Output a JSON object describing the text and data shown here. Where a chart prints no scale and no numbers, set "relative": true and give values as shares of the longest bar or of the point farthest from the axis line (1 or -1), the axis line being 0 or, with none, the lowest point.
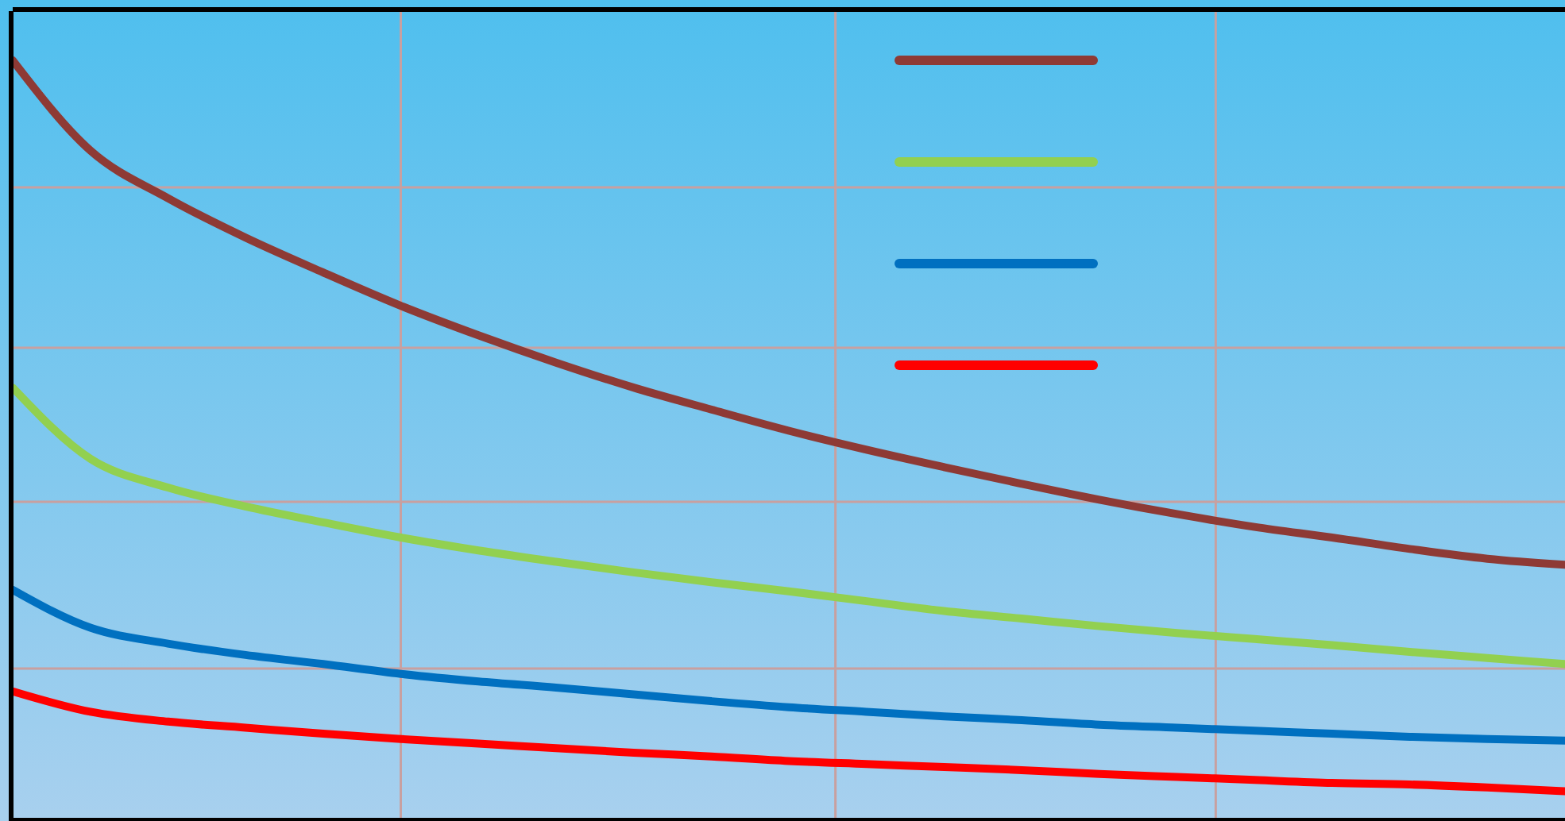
{
  "chart_data": {
    "type": "line",
    "relative": true,
    "grid": true,
    "marker": "none",
    "line_style": "solid",
    "categories": [
      null,
      null,
      null,
      null,
      null,
      null,
      null,
      null,
      null,
      null,
      null,
      null,
      null,
      null,
      null,
      null,
      null,
      null,
      null,
      null,
      null
    ],
    "series": [
      {
        "color": "#8e3a35",
        "values": [
          1.0,
          0.881,
          0.818,
          0.766,
          0.72,
          0.676,
          0.637,
          0.601,
          0.568,
          0.539,
          0.511,
          0.486,
          0.463,
          0.441,
          0.42,
          0.401,
          0.384,
          0.37,
          0.355,
          0.342,
          0.334
        ]
      },
      {
        "color": "#92d050",
        "values": [
          0.568,
          0.474,
          0.436,
          0.411,
          0.39,
          0.37,
          0.353,
          0.338,
          0.324,
          0.311,
          0.299,
          0.286,
          0.273,
          0.263,
          0.253,
          0.244,
          0.236,
          0.228,
          0.219,
          0.211,
          0.203
        ]
      },
      {
        "color": "#0070c0",
        "values": [
          0.301,
          0.251,
          0.23,
          0.215,
          0.203,
          0.19,
          0.18,
          0.172,
          0.163,
          0.154,
          0.146,
          0.14,
          0.134,
          0.129,
          0.123,
          0.119,
          0.115,
          0.111,
          0.107,
          0.104,
          0.102
        ]
      },
      {
        "color": "#ff0000",
        "values": [
          0.167,
          0.14,
          0.127,
          0.119,
          0.111,
          0.104,
          0.098,
          0.092,
          0.086,
          0.081,
          0.075,
          0.071,
          0.067,
          0.063,
          0.058,
          0.054,
          0.05,
          0.046,
          0.044,
          0.04,
          0.035
        ]
      }
    ]
  }
}
